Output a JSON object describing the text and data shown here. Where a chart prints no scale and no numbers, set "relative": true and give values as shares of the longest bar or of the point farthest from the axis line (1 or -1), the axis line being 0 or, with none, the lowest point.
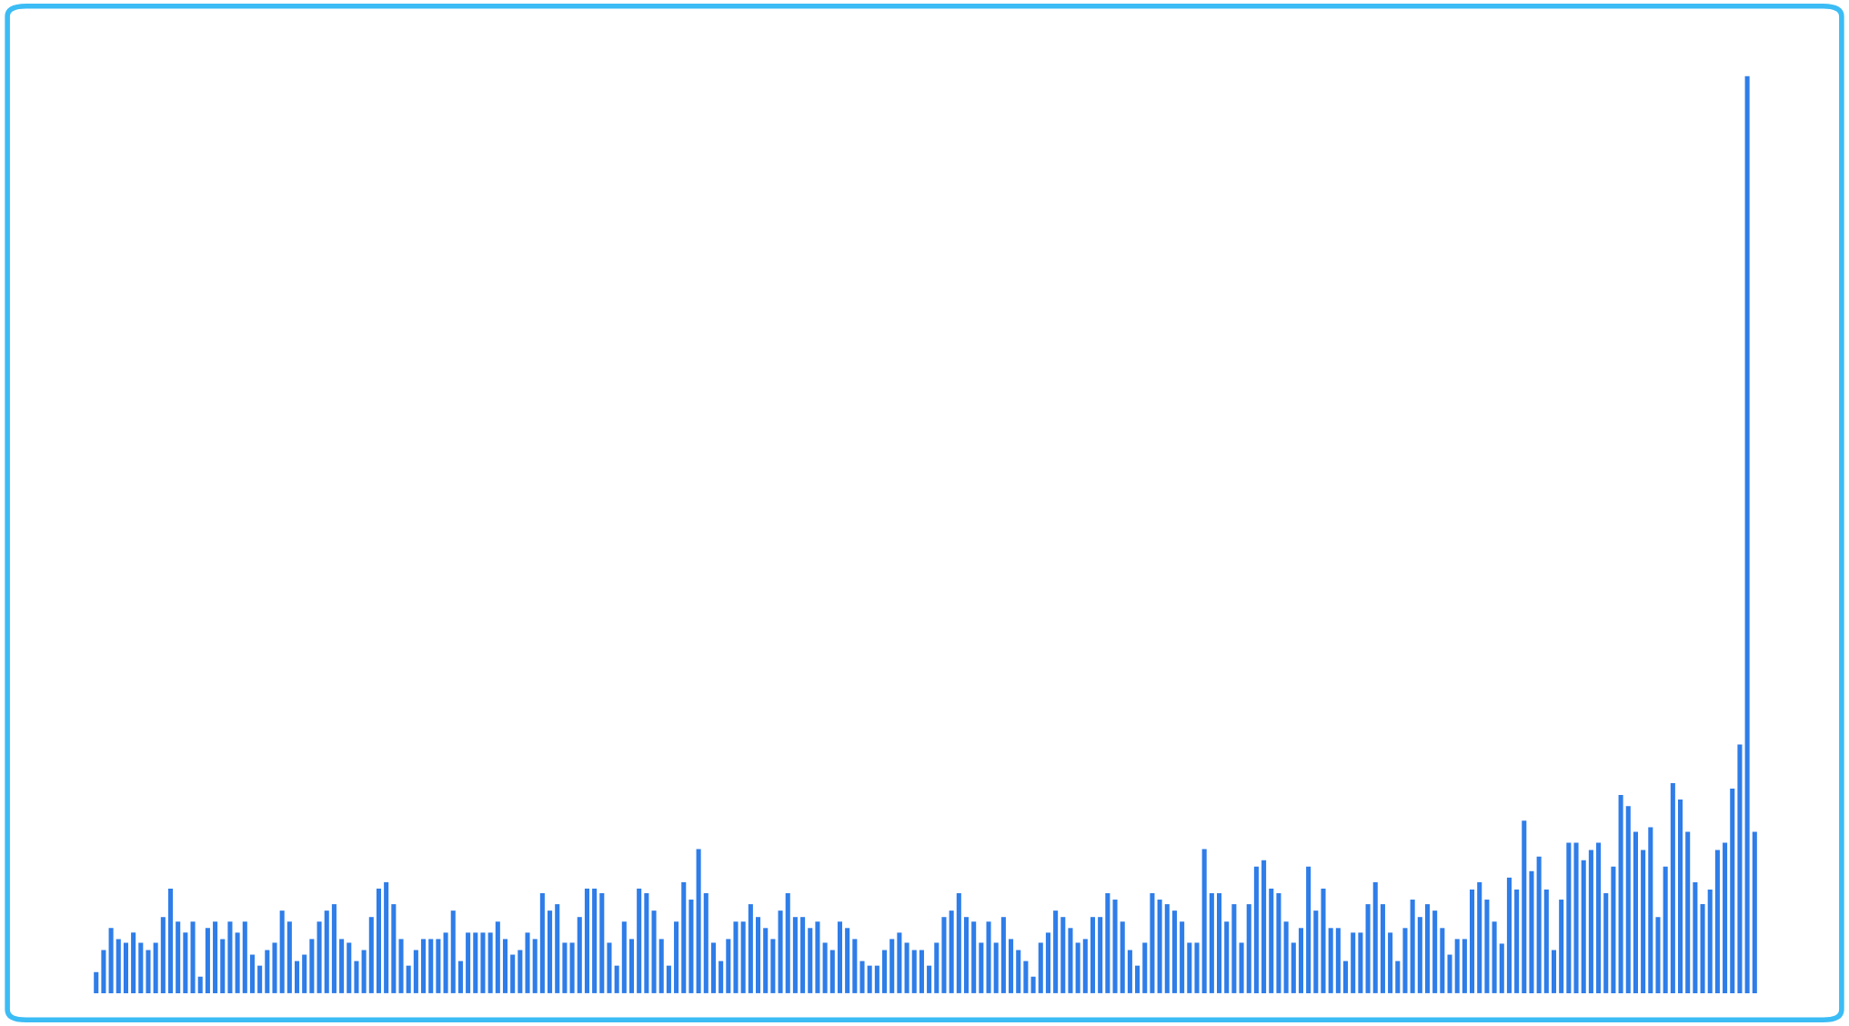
{
  "chart_data": {
    "type": "bar",
    "relative": true,
    "color": "#2e7de9",
    "categories": [
      null,
      null,
      null,
      null,
      null,
      null,
      null,
      null,
      null,
      null,
      null,
      null,
      null,
      null,
      null,
      null,
      null,
      null,
      null,
      null,
      null,
      null,
      null,
      null,
      null,
      null,
      null,
      null,
      null,
      null,
      null,
      null,
      null,
      null,
      null,
      null,
      null,
      null,
      null,
      null,
      null,
      null,
      null,
      null,
      null,
      null,
      null,
      null,
      null,
      null,
      null,
      null,
      null,
      null,
      null,
      null,
      null,
      null,
      null,
      null,
      null,
      null,
      null,
      null,
      null,
      null,
      null,
      null,
      null,
      null,
      null,
      null,
      null,
      null,
      null,
      null,
      null,
      null,
      null,
      null,
      null,
      null,
      null,
      null,
      null,
      null,
      null,
      null,
      null,
      null,
      null,
      null,
      null,
      null,
      null,
      null,
      null,
      null,
      null,
      null,
      null,
      null,
      null,
      null,
      null,
      null,
      null,
      null,
      null,
      null,
      null,
      null,
      null,
      null,
      null,
      null,
      null,
      null,
      null,
      null,
      null,
      null,
      null,
      null,
      null,
      null,
      null,
      null,
      null,
      null,
      null,
      null,
      null,
      null,
      null,
      null,
      null,
      null,
      null,
      null,
      null,
      null,
      null,
      null,
      null,
      null,
      null,
      null,
      null,
      null,
      null,
      null,
      null,
      null,
      null,
      null,
      null,
      null,
      null,
      null,
      null,
      null,
      null,
      null,
      null,
      null,
      null,
      null,
      null,
      null,
      null,
      null,
      null,
      null,
      null,
      null,
      null,
      null,
      null,
      null,
      null,
      null,
      null,
      null,
      null,
      null,
      null,
      null,
      null,
      null,
      null,
      null,
      null,
      null,
      null,
      null,
      null,
      null,
      null,
      null,
      null,
      null,
      null,
      null,
      null,
      null,
      null,
      null,
      null,
      null,
      null,
      null,
      null,
      null,
      null,
      null,
      null,
      null,
      null,
      null,
      null,
      null,
      null,
      null
    ],
    "values": [
      0.023,
      0.047,
      0.071,
      0.059,
      0.055,
      0.066,
      0.055,
      0.047,
      0.055,
      0.083,
      0.114,
      0.078,
      0.066,
      0.078,
      0.018,
      0.071,
      0.078,
      0.059,
      0.078,
      0.066,
      0.078,
      0.042,
      0.03,
      0.047,
      0.055,
      0.09,
      0.078,
      0.035,
      0.042,
      0.059,
      0.078,
      0.09,
      0.097,
      0.059,
      0.055,
      0.035,
      0.047,
      0.083,
      0.114,
      0.121,
      0.097,
      0.059,
      0.03,
      0.047,
      0.059,
      0.059,
      0.059,
      0.066,
      0.09,
      0.035,
      0.066,
      0.066,
      0.066,
      0.066,
      0.078,
      0.059,
      0.042,
      0.047,
      0.066,
      0.059,
      0.109,
      0.09,
      0.097,
      0.055,
      0.055,
      0.083,
      0.114,
      0.114,
      0.109,
      0.055,
      0.03,
      0.078,
      0.059,
      0.114,
      0.109,
      0.09,
      0.059,
      0.03,
      0.078,
      0.121,
      0.102,
      0.157,
      0.109,
      0.055,
      0.035,
      0.059,
      0.078,
      0.078,
      0.097,
      0.083,
      0.071,
      0.059,
      0.09,
      0.109,
      0.083,
      0.083,
      0.071,
      0.078,
      0.055,
      0.047,
      0.078,
      0.071,
      0.059,
      0.035,
      0.03,
      0.03,
      0.047,
      0.059,
      0.066,
      0.055,
      0.047,
      0.047,
      0.03,
      0.055,
      0.083,
      0.09,
      0.109,
      0.083,
      0.078,
      0.055,
      0.078,
      0.055,
      0.083,
      0.059,
      0.047,
      0.035,
      0.018,
      0.055,
      0.066,
      0.09,
      0.083,
      0.071,
      0.055,
      0.059,
      0.083,
      0.083,
      0.109,
      0.102,
      0.078,
      0.047,
      0.03,
      0.055,
      0.109,
      0.102,
      0.097,
      0.09,
      0.078,
      0.055,
      0.055,
      0.157,
      0.109,
      0.109,
      0.078,
      0.097,
      0.055,
      0.097,
      0.138,
      0.145,
      0.114,
      0.109,
      0.078,
      0.055,
      0.071,
      0.138,
      0.09,
      0.114,
      0.071,
      0.071,
      0.035,
      0.066,
      0.066,
      0.097,
      0.121,
      0.097,
      0.066,
      0.035,
      0.071,
      0.102,
      0.083,
      0.097,
      0.09,
      0.071,
      0.042,
      0.059,
      0.059,
      0.113,
      0.121,
      0.102,
      0.078,
      0.054,
      0.126,
      0.113,
      0.188,
      0.133,
      0.149,
      0.113,
      0.047,
      0.102,
      0.164,
      0.164,
      0.145,
      0.156,
      0.164,
      0.109,
      0.138,
      0.216,
      0.204,
      0.176,
      0.156,
      0.181,
      0.083,
      0.138,
      0.229,
      0.211,
      0.176,
      0.121,
      0.097,
      0.113,
      0.156,
      0.164,
      0.223,
      0.271,
      1,
      0.176
    ]
  }
}
